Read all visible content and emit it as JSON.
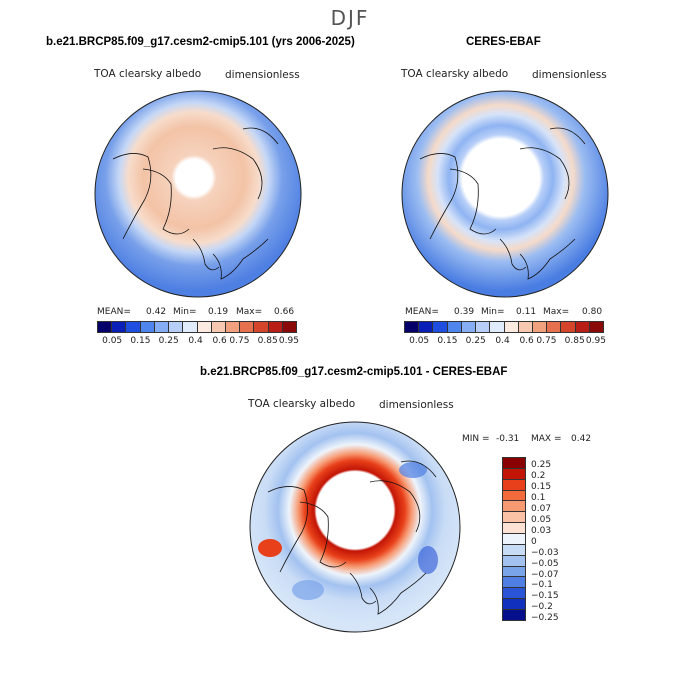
{
  "season": "DJF",
  "chart_data": [
    {
      "type": "heatmap",
      "projection": "north-polar-stereographic",
      "title": "b.e21.BRCP85.f09_g17.cesm2-cmip5.101 (yrs 2006-2025)",
      "variable_label": "TOA clearsky albedo",
      "units_label": "dimensionless",
      "stats": {
        "mean_label": "MEAN=",
        "mean": "0.42",
        "min_label": "Min=",
        "min": "0.19",
        "max_label": "Max=",
        "max": "0.66"
      },
      "colorbar_ticks": [
        "0.05",
        "0.15",
        "0.25",
        "0.4",
        "0.6",
        "0.75",
        "0.85",
        "0.95"
      ]
    },
    {
      "type": "heatmap",
      "projection": "north-polar-stereographic",
      "title": "CERES-EBAF",
      "variable_label": "TOA clearsky albedo",
      "units_label": "dimensionless",
      "stats": {
        "mean_label": "MEAN=",
        "mean": "0.39",
        "min_label": "Min=",
        "min": "0.11",
        "max_label": "Max=",
        "max": "0.80"
      },
      "colorbar_ticks": [
        "0.05",
        "0.15",
        "0.25",
        "0.4",
        "0.6",
        "0.75",
        "0.85",
        "0.95"
      ]
    },
    {
      "type": "heatmap",
      "projection": "north-polar-stereographic",
      "title": "b.e21.BRCP85.f09_g17.cesm2-cmip5.101 - CERES-EBAF",
      "variable_label": "TOA clearsky albedo",
      "units_label": "dimensionless",
      "stats": {
        "min_label": "MIN =",
        "min": "-0.31",
        "max_label": "MAX =",
        "max": "0.42"
      },
      "colorbar_ticks": [
        "0.25",
        "0.2",
        "0.15",
        "0.1",
        "0.07",
        "0.05",
        "0.03",
        "0",
        "−0.03",
        "−0.05",
        "−0.07",
        "−0.1",
        "−0.15",
        "−0.2",
        "−0.25"
      ]
    }
  ],
  "colors": {
    "abs_scale": [
      "#06006b",
      "#0a1fb8",
      "#1f4fe0",
      "#4f86ee",
      "#86aef4",
      "#b7cff8",
      "#e0ebfb",
      "#fdebe1",
      "#f8c9b0",
      "#f2a17f",
      "#e7704f",
      "#d4452c",
      "#b81e16",
      "#8a0a0a"
    ],
    "diff_scale": [
      "#8a0000",
      "#c21506",
      "#e8401a",
      "#f36a3c",
      "#f79a72",
      "#fbc2a6",
      "#fde2d4",
      "#eef4fb",
      "#c9dcf6",
      "#a3c2f0",
      "#7aa4ea",
      "#4f7fe2",
      "#2a55d6",
      "#1030bd",
      "#050f8c"
    ]
  }
}
